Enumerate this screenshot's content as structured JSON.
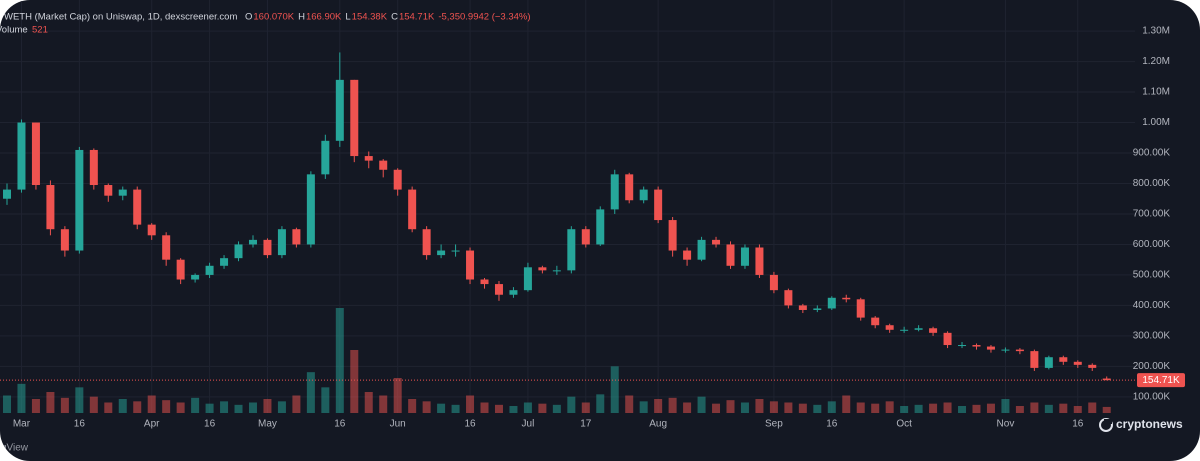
{
  "chart_data": {
    "type": "candlestick",
    "title": "WETH (Market Cap) on Uniswap, 1D, dexscreener.com",
    "legend": [
      {
        "label": "O",
        "value": "160.070K"
      },
      {
        "label": "H",
        "value": "166.90K"
      },
      {
        "label": "L",
        "value": "154.38K"
      },
      {
        "label": "C",
        "value": "154.71K"
      }
    ],
    "change": "-5,350.9942 (−3.34%)",
    "volume_label": "Volume",
    "categories": [
      null,
      "Mar",
      null,
      null,
      null,
      "16",
      null,
      null,
      null,
      null,
      "Apr",
      null,
      null,
      null,
      "16",
      null,
      null,
      null,
      "May",
      null,
      null,
      null,
      null,
      "16",
      null,
      null,
      null,
      "Jun",
      null,
      null,
      null,
      null,
      "16",
      null,
      null,
      null,
      "Jul",
      null,
      null,
      null,
      "17",
      null,
      null,
      null,
      null,
      "Aug",
      null,
      null,
      null,
      null,
      null,
      null,
      null,
      "Sep",
      null,
      null,
      null,
      "16",
      null,
      null,
      null,
      null,
      "Oct",
      null,
      null,
      null,
      null,
      null,
      null,
      "Nov",
      null,
      null,
      null,
      null,
      "16",
      null,
      null
    ],
    "open": [
      750,
      780,
      1000,
      795,
      650,
      580,
      910,
      795,
      760,
      780,
      665,
      630,
      550,
      485,
      500,
      530,
      555,
      600,
      615,
      565,
      650,
      600,
      830,
      940,
      1140,
      890,
      875,
      845,
      780,
      650,
      565,
      580,
      580,
      485,
      470,
      435,
      450,
      525,
      515,
      515,
      650,
      600,
      715,
      830,
      745,
      780,
      680,
      580,
      550,
      615,
      600,
      530,
      590,
      500,
      450,
      400,
      385,
      390,
      425,
      420,
      360,
      335,
      320,
      320,
      325,
      310,
      270,
      270,
      265,
      255,
      255,
      250,
      195,
      230,
      215,
      205,
      160.07
    ],
    "high": [
      800,
      1010,
      1000,
      810,
      660,
      920,
      915,
      800,
      790,
      790,
      670,
      640,
      555,
      505,
      540,
      565,
      610,
      630,
      620,
      660,
      655,
      840,
      960,
      1230,
      1140,
      905,
      880,
      850,
      790,
      660,
      600,
      600,
      590,
      490,
      480,
      460,
      540,
      530,
      530,
      660,
      660,
      725,
      845,
      835,
      790,
      790,
      690,
      590,
      625,
      625,
      610,
      600,
      600,
      510,
      455,
      405,
      400,
      430,
      435,
      425,
      365,
      340,
      330,
      335,
      330,
      315,
      280,
      275,
      270,
      262,
      260,
      255,
      235,
      235,
      220,
      210,
      166.9
    ],
    "low": [
      730,
      770,
      780,
      630,
      560,
      570,
      780,
      740,
      745,
      650,
      615,
      530,
      470,
      475,
      490,
      520,
      545,
      590,
      555,
      555,
      590,
      590,
      815,
      920,
      870,
      850,
      820,
      760,
      640,
      550,
      555,
      560,
      470,
      455,
      415,
      425,
      445,
      505,
      500,
      505,
      590,
      595,
      700,
      735,
      735,
      670,
      560,
      530,
      545,
      590,
      520,
      520,
      490,
      440,
      390,
      375,
      378,
      385,
      410,
      350,
      325,
      310,
      310,
      315,
      300,
      260,
      260,
      255,
      245,
      245,
      240,
      185,
      190,
      205,
      195,
      185,
      154.38
    ],
    "close": [
      780,
      1000,
      795,
      650,
      580,
      910,
      795,
      760,
      780,
      665,
      630,
      550,
      485,
      500,
      530,
      555,
      600,
      615,
      565,
      650,
      600,
      830,
      940,
      1140,
      890,
      875,
      845,
      780,
      650,
      565,
      580,
      580,
      485,
      470,
      435,
      450,
      525,
      515,
      515,
      650,
      600,
      715,
      830,
      745,
      780,
      680,
      580,
      550,
      615,
      600,
      530,
      590,
      500,
      450,
      400,
      385,
      390,
      425,
      420,
      360,
      335,
      320,
      320,
      325,
      310,
      270,
      270,
      265,
      255,
      255,
      250,
      195,
      230,
      215,
      205,
      195,
      154.71
    ],
    "volume": [
      1500,
      2500,
      1200,
      1800,
      1300,
      2200,
      1400,
      900,
      1200,
      1000,
      1500,
      1100,
      900,
      1300,
      800,
      1000,
      700,
      900,
      1200,
      1000,
      1500,
      3500,
      2200,
      9000,
      5400,
      1800,
      1500,
      3000,
      1200,
      1000,
      800,
      700,
      1500,
      900,
      700,
      600,
      900,
      800,
      700,
      1400,
      900,
      1600,
      4000,
      1500,
      1000,
      1200,
      1300,
      900,
      1400,
      800,
      1100,
      900,
      1200,
      1000,
      900,
      800,
      700,
      1000,
      1500,
      900,
      800,
      1000,
      600,
      700,
      800,
      900,
      600,
      700,
      800,
      1200,
      600,
      900,
      700,
      800,
      600,
      900,
      521
    ],
    "ylim": [
      47,
      1402
    ],
    "yticks": [
      {
        "value": 100,
        "label": "100.00K"
      },
      {
        "value": 200,
        "label": "200.00K"
      },
      {
        "value": 300,
        "label": "300.00K"
      },
      {
        "value": 400,
        "label": "400.00K"
      },
      {
        "value": 500,
        "label": "500.00K"
      },
      {
        "value": 600,
        "label": "600.00K"
      },
      {
        "value": 700,
        "label": "700.00K"
      },
      {
        "value": 800,
        "label": "800.00K"
      },
      {
        "value": 900,
        "label": "900.00K"
      },
      {
        "value": 1000,
        "label": "1.00M"
      },
      {
        "value": 1100,
        "label": "1.10M"
      },
      {
        "value": 1200,
        "label": "1.20M"
      },
      {
        "value": 1300,
        "label": "1.30M"
      }
    ],
    "vlim": [
      0,
      9000
    ],
    "up_color": "#26a69a",
    "down_color": "#ef5350",
    "grid": true,
    "branding": "TradingView",
    "watermark": "cryptonews"
  }
}
